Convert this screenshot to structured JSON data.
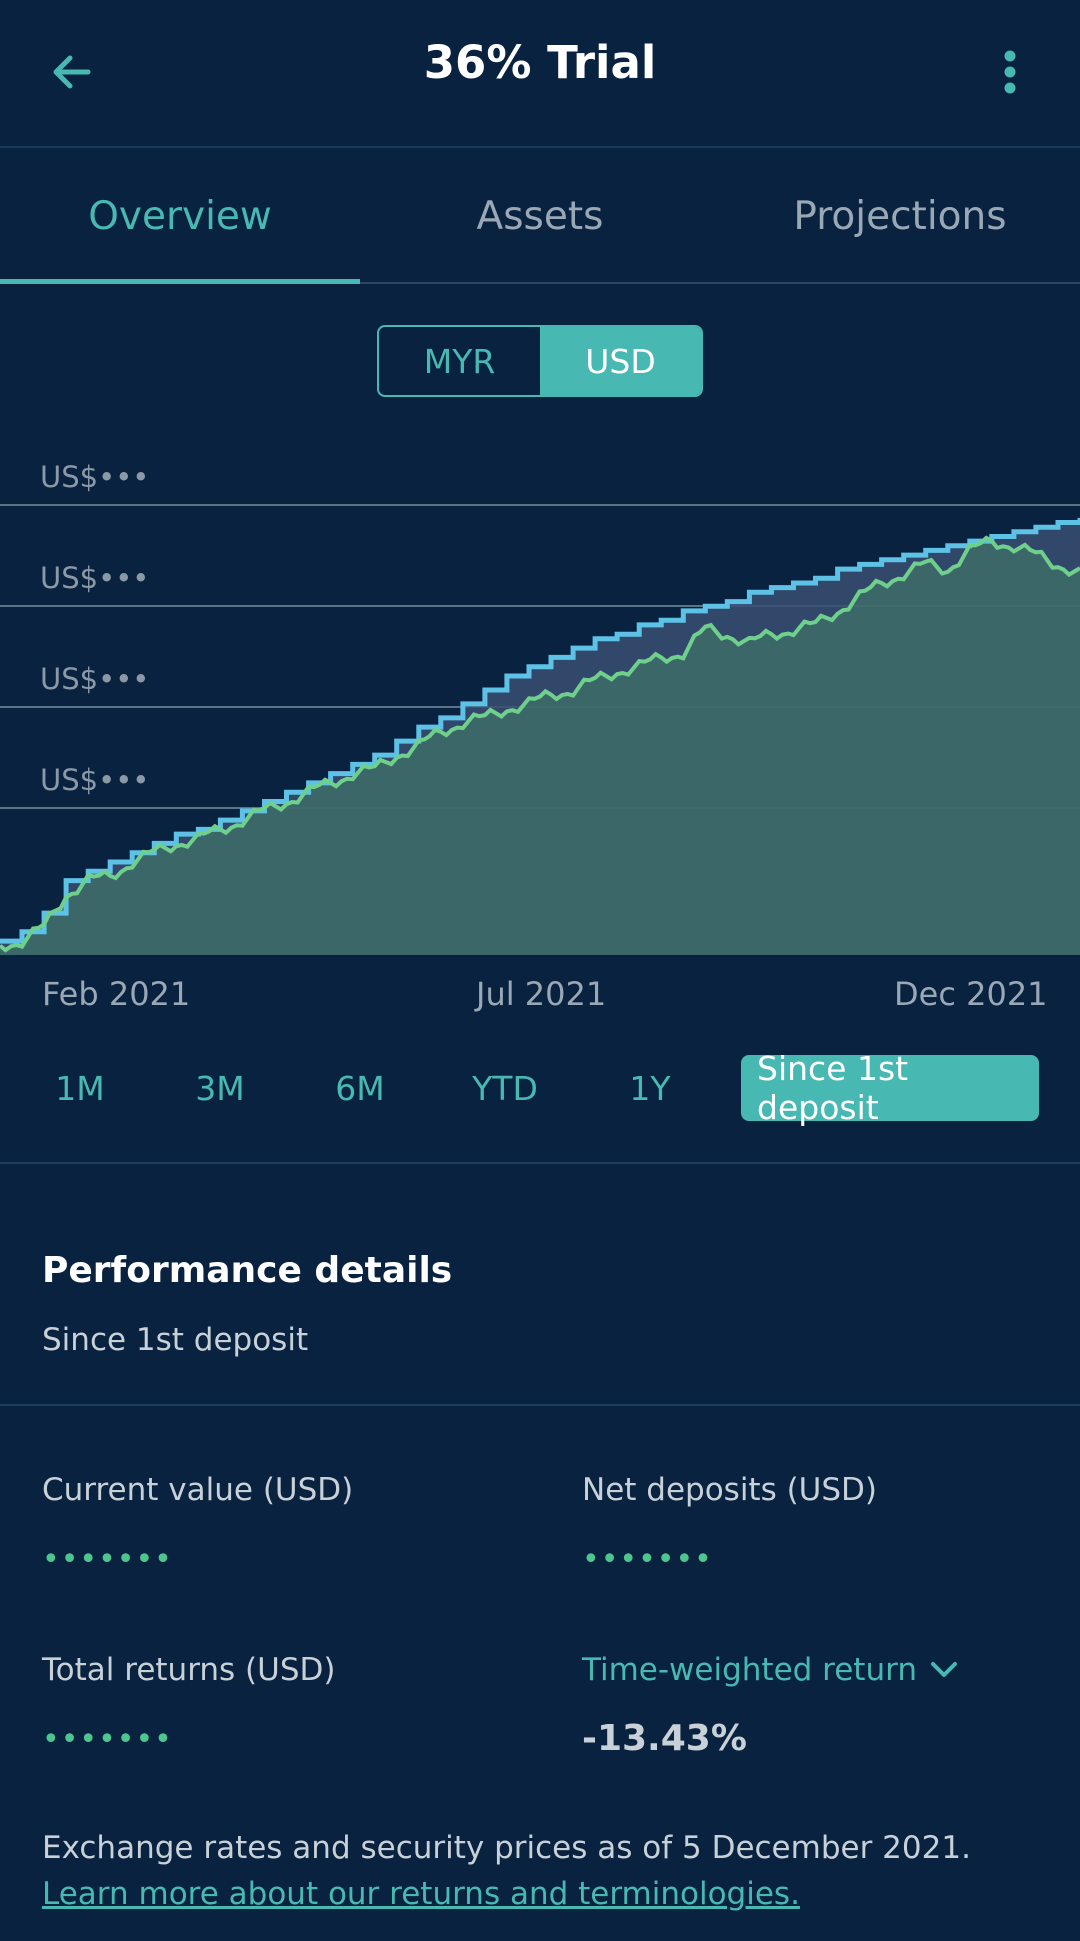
{
  "header": {
    "title": "36% Trial"
  },
  "tabs": [
    {
      "label": "Overview",
      "active": true
    },
    {
      "label": "Assets",
      "active": false
    },
    {
      "label": "Projections",
      "active": false
    }
  ],
  "currency": {
    "options": [
      "MYR",
      "USD"
    ],
    "selected": "USD"
  },
  "chart_data": {
    "type": "line",
    "y_tick_labels": [
      "US$•••",
      "US$•••",
      "US$•••",
      "US$•••"
    ],
    "x_tick_labels": [
      "Feb 2021",
      "Jul 2021",
      "Dec 2021"
    ],
    "x_range": [
      "Jan 2021",
      "Dec 2021"
    ],
    "y_range": [
      0,
      1
    ],
    "grid": true,
    "legend": "none",
    "colors": {
      "deposits": "#5ec2e6",
      "value": "#6fd08c"
    },
    "series": [
      {
        "key": "deposits",
        "values": [
          0.03,
          0.05,
          0.09,
          0.16,
          0.18,
          0.2,
          0.22,
          0.24,
          0.26,
          0.27,
          0.29,
          0.31,
          0.33,
          0.35,
          0.37,
          0.39,
          0.41,
          0.43,
          0.46,
          0.49,
          0.51,
          0.54,
          0.57,
          0.6,
          0.62,
          0.64,
          0.66,
          0.68,
          0.69,
          0.71,
          0.72,
          0.74,
          0.75,
          0.76,
          0.78,
          0.79,
          0.8,
          0.81,
          0.83,
          0.84,
          0.85,
          0.86,
          0.87,
          0.88,
          0.89,
          0.9,
          0.91,
          0.92,
          0.93,
          0.94
        ]
      },
      {
        "key": "value",
        "values": [
          0.02,
          0.03,
          0.06,
          0.13,
          0.16,
          0.17,
          0.2,
          0.22,
          0.24,
          0.25,
          0.27,
          0.29,
          0.31,
          0.33,
          0.35,
          0.37,
          0.39,
          0.4,
          0.43,
          0.45,
          0.48,
          0.5,
          0.51,
          0.53,
          0.54,
          0.56,
          0.57,
          0.59,
          0.61,
          0.62,
          0.64,
          0.65,
          0.7,
          0.69,
          0.67,
          0.69,
          0.7,
          0.71,
          0.74,
          0.77,
          0.8,
          0.82,
          0.84,
          0.83,
          0.87,
          0.89,
          0.88,
          0.86,
          0.84,
          0.82
        ]
      }
    ]
  },
  "ranges": [
    {
      "label": "1M",
      "active": false
    },
    {
      "label": "3M",
      "active": false
    },
    {
      "label": "6M",
      "active": false
    },
    {
      "label": "YTD",
      "active": false
    },
    {
      "label": "1Y",
      "active": false
    },
    {
      "label": "Since 1st deposit",
      "active": true
    }
  ],
  "performance": {
    "title": "Performance details",
    "subtitle": "Since 1st deposit",
    "current_value_label": "Current value (USD)",
    "current_value": "•••••••",
    "net_deposits_label": "Net deposits (USD)",
    "net_deposits": "•••••••",
    "total_returns_label": "Total returns (USD)",
    "total_returns": "•••••••",
    "twr_label": "Time-weighted return",
    "twr_value": "-13.43%"
  },
  "footnote": {
    "text": "Exchange rates and security prices as of 5 December 2021.",
    "link": "Learn more about our returns and terminologies."
  },
  "icons": {
    "back": "arrow-left-icon",
    "menu": "more-vertical-icon",
    "dropdown": "chevron-down-icon"
  },
  "colors": {
    "background": "#08223f",
    "accent": "#48b9b2",
    "positive": "#4ec48f"
  }
}
